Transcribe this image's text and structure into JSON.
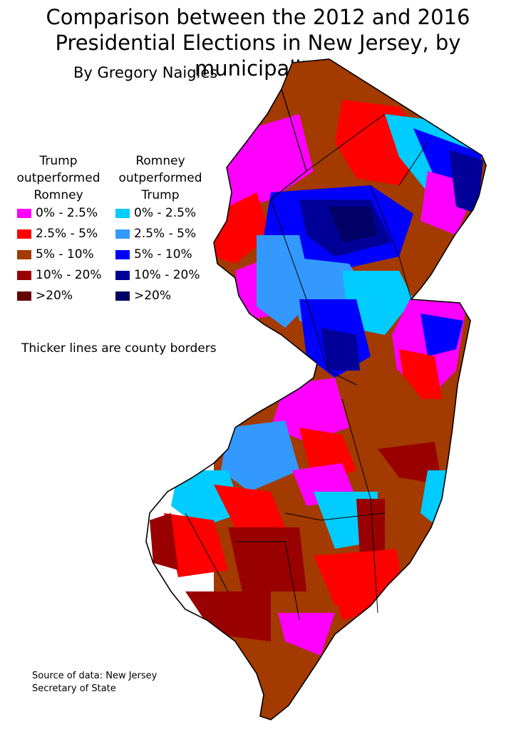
{
  "title": {
    "line1": "Comparison between the 2012 and 2016",
    "line2": "Presidential Elections in New Jersey, by municipality"
  },
  "author": "By Gregory Naigles",
  "legend": {
    "trump_heading": [
      "Trump",
      "outperformed",
      "Romney"
    ],
    "romney_heading": [
      "Romney",
      "outperformed",
      "Trump"
    ],
    "trump_items": [
      {
        "label": "0% - 2.5%",
        "color": "#ff00ff"
      },
      {
        "label": "2.5% - 5%",
        "color": "#ff0000"
      },
      {
        "label": "5% - 10%",
        "color": "#a33a00"
      },
      {
        "label": "10% - 20%",
        "color": "#990000"
      },
      {
        "label": ">20%",
        "color": "#660000"
      }
    ],
    "romney_items": [
      {
        "label": "0% - 2.5%",
        "color": "#00ccff"
      },
      {
        "label": "2.5% - 5%",
        "color": "#3399ff"
      },
      {
        "label": "5% - 10%",
        "color": "#0000ff"
      },
      {
        "label": "10% - 20%",
        "color": "#000099"
      },
      {
        "label": ">20%",
        "color": "#000066"
      }
    ]
  },
  "note": "Thicker lines are county borders",
  "source": {
    "line1": "Source of data: New Jersey",
    "line2": "Secretary of State"
  }
}
